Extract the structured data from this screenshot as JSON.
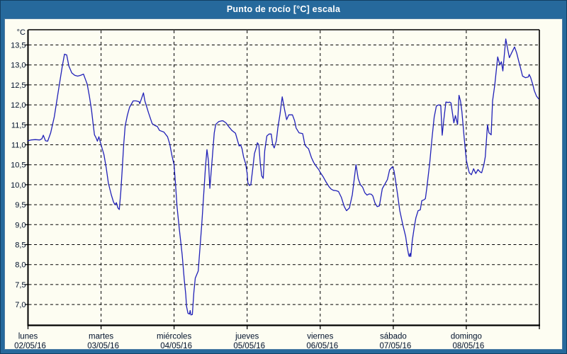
{
  "window": {
    "title": "Punto de rocío [°C] escala"
  },
  "chart_data": {
    "type": "line",
    "title": "Punto de rocío [°C] escala",
    "grid": "dashed",
    "legend": "none",
    "colors": {
      "titlebar": "#26699c",
      "frame_border": "#123f63",
      "plot_background": "#fdfdf2",
      "grid": "#000000",
      "axis": "#000000",
      "text": "#00112b",
      "line": "#2121b8"
    },
    "y_axis": {
      "unit_label": "°C",
      "ticks": [
        13.5,
        13.0,
        12.5,
        12.0,
        11.5,
        11.0,
        10.5,
        10.0,
        9.5,
        9.0,
        8.5,
        8.0,
        7.5,
        7.0
      ],
      "tick_labels": [
        "13,5",
        "13,0",
        "12,5",
        "12,0",
        "11,5",
        "11,0",
        "10,5",
        "10,0",
        "9,5",
        "9,0",
        "8,5",
        "8,0",
        "7,5",
        "7,0"
      ],
      "range_top": 13.88,
      "range_bottom": 6.48
    },
    "x_axis": {
      "unit": "days",
      "range_days": [
        0,
        7
      ],
      "days": [
        {
          "name": "lunes",
          "date": "02/05/16"
        },
        {
          "name": "martes",
          "date": "03/05/16"
        },
        {
          "name": "miércoles",
          "date": "04/05/16"
        },
        {
          "name": "jueves",
          "date": "05/05/16"
        },
        {
          "name": "viernes",
          "date": "06/05/16"
        },
        {
          "name": "sábado",
          "date": "07/05/16"
        },
        {
          "name": "domingo",
          "date": "08/05/16"
        }
      ]
    },
    "series": [
      {
        "name": "Punto de rocío",
        "color": "#2121b8",
        "points": [
          [
            0.0,
            11.1
          ],
          [
            0.04,
            11.12
          ],
          [
            0.1,
            11.13
          ],
          [
            0.16,
            11.12
          ],
          [
            0.19,
            11.15
          ],
          [
            0.21,
            11.24
          ],
          [
            0.24,
            11.1
          ],
          [
            0.27,
            11.09
          ],
          [
            0.31,
            11.3
          ],
          [
            0.36,
            11.7
          ],
          [
            0.42,
            12.4
          ],
          [
            0.47,
            12.97
          ],
          [
            0.5,
            13.27
          ],
          [
            0.53,
            13.25
          ],
          [
            0.56,
            12.97
          ],
          [
            0.6,
            12.8
          ],
          [
            0.64,
            12.74
          ],
          [
            0.68,
            12.72
          ],
          [
            0.72,
            12.74
          ],
          [
            0.76,
            12.77
          ],
          [
            0.81,
            12.52
          ],
          [
            0.84,
            12.22
          ],
          [
            0.87,
            11.86
          ],
          [
            0.89,
            11.55
          ],
          [
            0.91,
            11.25
          ],
          [
            0.93,
            11.18
          ],
          [
            0.95,
            11.09
          ],
          [
            0.97,
            11.2
          ],
          [
            1.0,
            11.0
          ],
          [
            1.04,
            10.75
          ],
          [
            1.07,
            10.43
          ],
          [
            1.1,
            10.04
          ],
          [
            1.14,
            9.75
          ],
          [
            1.17,
            9.57
          ],
          [
            1.19,
            9.5
          ],
          [
            1.21,
            9.55
          ],
          [
            1.23,
            9.42
          ],
          [
            1.25,
            9.38
          ],
          [
            1.27,
            9.81
          ],
          [
            1.29,
            10.4
          ],
          [
            1.31,
            11.0
          ],
          [
            1.33,
            11.47
          ],
          [
            1.36,
            11.74
          ],
          [
            1.39,
            11.94
          ],
          [
            1.44,
            12.1
          ],
          [
            1.48,
            12.1
          ],
          [
            1.52,
            12.08
          ],
          [
            1.53,
            12.03
          ],
          [
            1.58,
            12.3
          ],
          [
            1.6,
            12.1
          ],
          [
            1.65,
            11.8
          ],
          [
            1.7,
            11.53
          ],
          [
            1.74,
            11.48
          ],
          [
            1.77,
            11.46
          ],
          [
            1.8,
            11.36
          ],
          [
            1.86,
            11.32
          ],
          [
            1.91,
            11.2
          ],
          [
            1.94,
            11.02
          ],
          [
            1.97,
            10.73
          ],
          [
            2.0,
            10.5
          ],
          [
            2.02,
            10.0
          ],
          [
            2.04,
            9.45
          ],
          [
            2.07,
            8.91
          ],
          [
            2.11,
            8.25
          ],
          [
            2.14,
            7.6
          ],
          [
            2.16,
            7.25
          ],
          [
            2.17,
            6.95
          ],
          [
            2.19,
            6.78
          ],
          [
            2.21,
            6.76
          ],
          [
            2.22,
            6.85
          ],
          [
            2.23,
            6.74
          ],
          [
            2.25,
            6.75
          ],
          [
            2.27,
            7.3
          ],
          [
            2.29,
            7.66
          ],
          [
            2.33,
            7.84
          ],
          [
            2.38,
            9.04
          ],
          [
            2.43,
            10.47
          ],
          [
            2.45,
            10.88
          ],
          [
            2.47,
            10.6
          ],
          [
            2.49,
            9.91
          ],
          [
            2.52,
            10.6
          ],
          [
            2.55,
            11.3
          ],
          [
            2.57,
            11.51
          ],
          [
            2.61,
            11.58
          ],
          [
            2.65,
            11.6
          ],
          [
            2.67,
            11.6
          ],
          [
            2.71,
            11.55
          ],
          [
            2.75,
            11.45
          ],
          [
            2.79,
            11.36
          ],
          [
            2.84,
            11.29
          ],
          [
            2.87,
            11.1
          ],
          [
            2.89,
            10.97
          ],
          [
            2.91,
            11.0
          ],
          [
            2.93,
            10.9
          ],
          [
            2.95,
            10.7
          ],
          [
            2.98,
            10.52
          ],
          [
            3.0,
            10.28
          ],
          [
            3.01,
            10.05
          ],
          [
            3.03,
            9.98
          ],
          [
            3.05,
            10.0
          ],
          [
            3.08,
            10.46
          ],
          [
            3.1,
            10.78
          ],
          [
            3.13,
            10.96
          ],
          [
            3.14,
            11.05
          ],
          [
            3.16,
            11.0
          ],
          [
            3.18,
            10.52
          ],
          [
            3.2,
            10.22
          ],
          [
            3.22,
            10.16
          ],
          [
            3.24,
            10.85
          ],
          [
            3.27,
            11.22
          ],
          [
            3.3,
            11.27
          ],
          [
            3.33,
            11.27
          ],
          [
            3.35,
            11.0
          ],
          [
            3.37,
            10.92
          ],
          [
            3.4,
            11.1
          ],
          [
            3.42,
            11.42
          ],
          [
            3.45,
            11.77
          ],
          [
            3.47,
            12.07
          ],
          [
            3.48,
            12.2
          ],
          [
            3.51,
            11.9
          ],
          [
            3.54,
            11.63
          ],
          [
            3.57,
            11.75
          ],
          [
            3.62,
            11.75
          ],
          [
            3.65,
            11.6
          ],
          [
            3.67,
            11.42
          ],
          [
            3.71,
            11.3
          ],
          [
            3.76,
            11.28
          ],
          [
            3.77,
            11.19
          ],
          [
            3.79,
            11.0
          ],
          [
            3.81,
            10.95
          ],
          [
            3.84,
            10.9
          ],
          [
            3.88,
            10.68
          ],
          [
            3.91,
            10.56
          ],
          [
            3.95,
            10.45
          ],
          [
            3.98,
            10.38
          ],
          [
            4.0,
            10.31
          ],
          [
            4.04,
            10.2
          ],
          [
            4.08,
            10.07
          ],
          [
            4.12,
            9.95
          ],
          [
            4.15,
            9.89
          ],
          [
            4.18,
            9.86
          ],
          [
            4.22,
            9.85
          ],
          [
            4.25,
            9.83
          ],
          [
            4.29,
            9.68
          ],
          [
            4.33,
            9.45
          ],
          [
            4.36,
            9.35
          ],
          [
            4.4,
            9.42
          ],
          [
            4.44,
            9.75
          ],
          [
            4.47,
            10.2
          ],
          [
            4.49,
            10.5
          ],
          [
            4.52,
            10.15
          ],
          [
            4.55,
            10.0
          ],
          [
            4.58,
            9.94
          ],
          [
            4.61,
            9.8
          ],
          [
            4.64,
            9.74
          ],
          [
            4.67,
            9.77
          ],
          [
            4.7,
            9.76
          ],
          [
            4.72,
            9.72
          ],
          [
            4.75,
            9.54
          ],
          [
            4.78,
            9.45
          ],
          [
            4.81,
            9.47
          ],
          [
            4.85,
            9.9
          ],
          [
            4.88,
            10.0
          ],
          [
            4.92,
            10.13
          ],
          [
            4.95,
            10.37
          ],
          [
            4.99,
            10.45
          ],
          [
            5.01,
            10.35
          ],
          [
            5.03,
            10.13
          ],
          [
            5.06,
            9.75
          ],
          [
            5.09,
            9.35
          ],
          [
            5.13,
            9.0
          ],
          [
            5.17,
            8.7
          ],
          [
            5.19,
            8.45
          ],
          [
            5.21,
            8.25
          ],
          [
            5.22,
            8.2
          ],
          [
            5.23,
            8.28
          ],
          [
            5.24,
            8.2
          ],
          [
            5.26,
            8.6
          ],
          [
            5.29,
            8.96
          ],
          [
            5.31,
            9.17
          ],
          [
            5.34,
            9.35
          ],
          [
            5.37,
            9.37
          ],
          [
            5.39,
            9.6
          ],
          [
            5.42,
            9.62
          ],
          [
            5.44,
            9.65
          ],
          [
            5.46,
            9.93
          ],
          [
            5.5,
            10.56
          ],
          [
            5.53,
            11.16
          ],
          [
            5.56,
            11.69
          ],
          [
            5.59,
            11.97
          ],
          [
            5.62,
            12.0
          ],
          [
            5.65,
            11.98
          ],
          [
            5.67,
            11.24
          ],
          [
            5.69,
            11.6
          ],
          [
            5.72,
            12.07
          ],
          [
            5.75,
            12.06
          ],
          [
            5.77,
            12.07
          ],
          [
            5.79,
            12.05
          ],
          [
            5.81,
            11.8
          ],
          [
            5.83,
            11.55
          ],
          [
            5.85,
            11.73
          ],
          [
            5.88,
            11.51
          ],
          [
            5.9,
            12.24
          ],
          [
            5.92,
            12.1
          ],
          [
            5.94,
            11.83
          ],
          [
            5.97,
            11.2
          ],
          [
            6.0,
            10.62
          ],
          [
            6.02,
            10.45
          ],
          [
            6.04,
            10.3
          ],
          [
            6.07,
            10.25
          ],
          [
            6.1,
            10.4
          ],
          [
            6.13,
            10.28
          ],
          [
            6.16,
            10.38
          ],
          [
            6.19,
            10.32
          ],
          [
            6.21,
            10.3
          ],
          [
            6.24,
            10.5
          ],
          [
            6.26,
            10.7
          ],
          [
            6.29,
            11.5
          ],
          [
            6.31,
            11.3
          ],
          [
            6.34,
            11.25
          ],
          [
            6.36,
            12.1
          ],
          [
            6.39,
            12.5
          ],
          [
            6.43,
            13.2
          ],
          [
            6.46,
            13.0
          ],
          [
            6.48,
            13.08
          ],
          [
            6.5,
            12.85
          ],
          [
            6.54,
            13.65
          ],
          [
            6.57,
            13.36
          ],
          [
            6.59,
            13.18
          ],
          [
            6.62,
            13.3
          ],
          [
            6.66,
            13.45
          ],
          [
            6.69,
            13.3
          ],
          [
            6.72,
            13.08
          ],
          [
            6.74,
            12.94
          ],
          [
            6.77,
            12.72
          ],
          [
            6.81,
            12.68
          ],
          [
            6.85,
            12.7
          ],
          [
            6.86,
            12.76
          ],
          [
            6.88,
            12.69
          ],
          [
            6.91,
            12.51
          ],
          [
            6.93,
            12.36
          ],
          [
            6.96,
            12.22
          ],
          [
            6.99,
            12.15
          ]
        ]
      }
    ]
  }
}
